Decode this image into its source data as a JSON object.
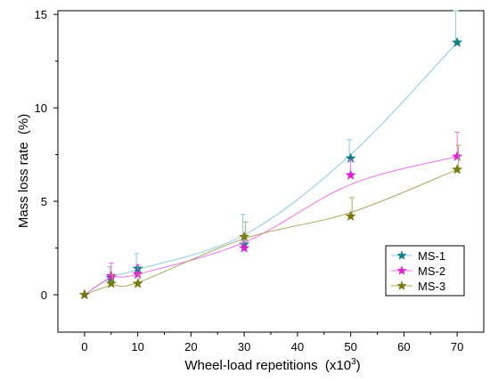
{
  "chart_data": {
    "type": "line",
    "xlabel": "Wheel-load repetitions  (x10",
    "xlabel_sup": "3",
    "xlabel_tail": ")",
    "ylabel": "Mass loss rate  (%)",
    "xlim": [
      -5,
      75
    ],
    "ylim": [
      -2,
      15.2
    ],
    "xticks": [
      0,
      10,
      20,
      30,
      40,
      50,
      60,
      70
    ],
    "xtick_labels": [
      "0",
      "10",
      "20",
      "30",
      "40",
      "50",
      "60",
      "70"
    ],
    "yticks": [
      0,
      5,
      10,
      15
    ],
    "ytick_labels": [
      "0",
      "5",
      "10",
      "15"
    ],
    "grid": false,
    "legend_position": "lower-right",
    "x": [
      0,
      5,
      10,
      30,
      50,
      70
    ],
    "series": [
      {
        "name": "MS-1",
        "color": "#0e7f86",
        "line_color": "#8cc8e0",
        "values": [
          0,
          0.9,
          1.4,
          2.7,
          7.3,
          13.5
        ],
        "error": [
          0,
          0.6,
          0.8,
          1.6,
          1.0,
          1.7
        ],
        "fit": [
          0,
          0.95,
          1.35,
          3.2,
          7.5,
          13.5
        ]
      },
      {
        "name": "MS-2",
        "color": "#e020d0",
        "line_color": "#f070e8",
        "values": [
          0,
          1.0,
          1.1,
          2.5,
          6.4,
          7.4
        ],
        "error": [
          0,
          0.7,
          0.5,
          0.7,
          0.8,
          1.3
        ],
        "fit": [
          0,
          0.9,
          1.1,
          2.8,
          5.9,
          7.4
        ]
      },
      {
        "name": "MS-3",
        "color": "#7a7a10",
        "line_color": "#a8a860",
        "values": [
          0,
          0.6,
          0.6,
          3.1,
          4.2,
          6.7
        ],
        "error": [
          0,
          0.5,
          0.5,
          0.8,
          1.0,
          1.3
        ],
        "fit": [
          0,
          0.5,
          0.65,
          3.0,
          4.4,
          6.7
        ]
      }
    ]
  }
}
